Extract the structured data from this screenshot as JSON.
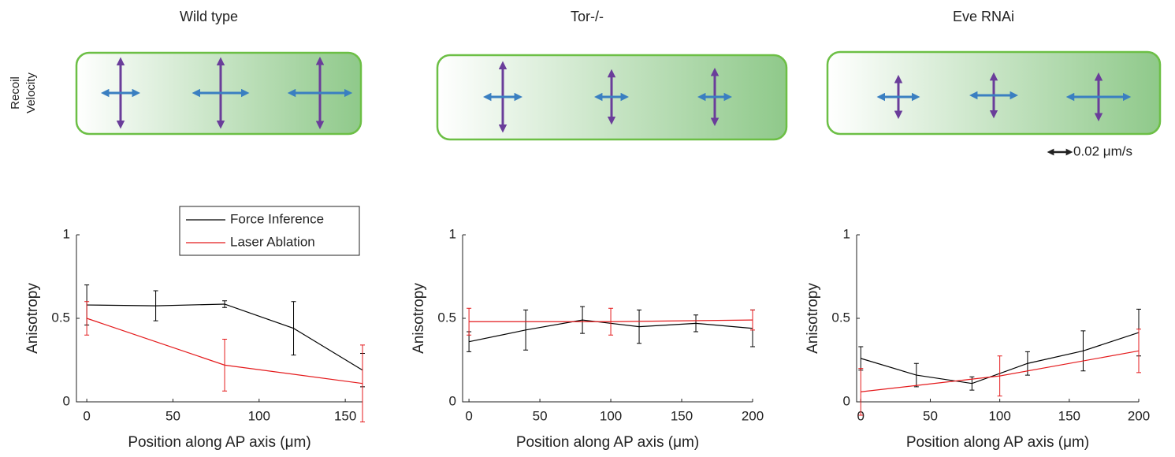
{
  "recoil": {
    "label_lines": [
      "Recoil",
      "Velocity"
    ],
    "scale_bar": {
      "value": 0.02,
      "label": "0.02 μm/s"
    },
    "panels": [
      {
        "ap": [
          0.033,
          0.052,
          0.06
        ],
        "dv": [
          0.067,
          0.067,
          0.068
        ]
      },
      {
        "ap": [
          0.033,
          0.028,
          0.028
        ],
        "dv": [
          0.067,
          0.05,
          0.053
        ]
      },
      {
        "ap": [
          0.037,
          0.043,
          0.06
        ],
        "dv": [
          0.038,
          0.04,
          0.043
        ]
      }
    ]
  },
  "chart_data": [
    {
      "type": "line",
      "title": "Wild type",
      "xlabel": "Position along AP axis (μm)",
      "ylabel": "Anisotropy",
      "xlim": [
        -6,
        160
      ],
      "xticks": [
        0,
        50,
        100,
        150
      ],
      "ylim": [
        0,
        1
      ],
      "yticks": [
        0,
        0.5,
        1
      ],
      "legend": "upper-right",
      "series": [
        {
          "name": "Force Inference",
          "color": "#000000",
          "x": [
            0,
            40,
            80,
            120,
            160
          ],
          "values": [
            0.58,
            0.575,
            0.585,
            0.44,
            0.19
          ],
          "errors": [
            0.12,
            0.09,
            0.02,
            0.16,
            0.1
          ]
        },
        {
          "name": "Laser Ablation",
          "color": "#e41a1c",
          "x": [
            0,
            80,
            160
          ],
          "values": [
            0.5,
            0.22,
            0.11
          ],
          "errors": [
            0.1,
            0.155,
            0.23
          ]
        }
      ]
    },
    {
      "type": "line",
      "title": "Tor-/-",
      "xlabel": "Position along AP axis (μm)",
      "ylabel": "Anisotropy",
      "xlim": [
        -4.5,
        200
      ],
      "xticks": [
        0,
        50,
        100,
        150,
        200
      ],
      "ylim": [
        0,
        1
      ],
      "yticks": [
        0,
        0.5,
        1
      ],
      "series": [
        {
          "color": "#000000",
          "x": [
            0,
            40,
            80,
            120,
            160,
            200
          ],
          "values": [
            0.36,
            0.43,
            0.49,
            0.45,
            0.47,
            0.44
          ],
          "errors": [
            0.06,
            0.12,
            0.08,
            0.1,
            0.05,
            0.11
          ]
        },
        {
          "color": "#e41a1c",
          "x": [
            0,
            100,
            200
          ],
          "values": [
            0.48,
            0.48,
            0.49
          ],
          "errors": [
            0.08,
            0.08,
            0.06
          ]
        }
      ]
    },
    {
      "type": "line",
      "title": "Eve RNAi",
      "xlabel": "Position along AP axis (μm)",
      "ylabel": "Anisotropy",
      "xlim": [
        -3,
        200
      ],
      "xticks": [
        0,
        50,
        100,
        150,
        200
      ],
      "ylim": [
        0,
        1
      ],
      "yticks": [
        0,
        0.5,
        1
      ],
      "series": [
        {
          "color": "#000000",
          "x": [
            0,
            40,
            80,
            120,
            160,
            200
          ],
          "values": [
            0.26,
            0.16,
            0.11,
            0.23,
            0.305,
            0.415
          ],
          "errors": [
            0.07,
            0.07,
            0.04,
            0.07,
            0.12,
            0.14
          ]
        },
        {
          "color": "#e41a1c",
          "x": [
            0,
            100,
            200
          ],
          "values": [
            0.06,
            0.155,
            0.305
          ],
          "errors": [
            0.14,
            0.12,
            0.13
          ]
        }
      ]
    }
  ]
}
